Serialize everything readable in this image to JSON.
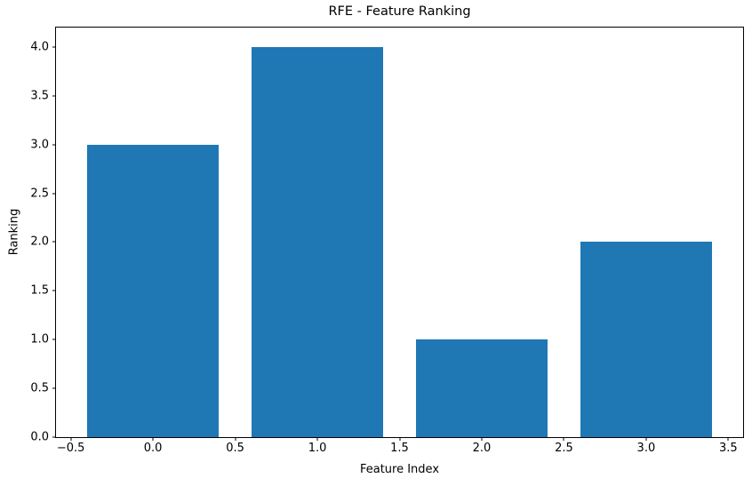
{
  "figure": {
    "background": "#ffffff"
  },
  "chart_data": {
    "type": "bar",
    "title": "RFE - Feature Ranking",
    "xlabel": "Feature Index",
    "ylabel": "Ranking",
    "x": [
      0,
      1,
      2,
      3
    ],
    "values": [
      3,
      4,
      1,
      2
    ],
    "bar_width": 0.8,
    "bar_color": "#1f77b4",
    "axis_color": "#000000",
    "xlim": [
      -0.59,
      3.59
    ],
    "ylim": [
      0,
      4.2
    ],
    "xticks": [
      {
        "v": -0.5,
        "label": "−0.5"
      },
      {
        "v": 0.0,
        "label": "0.0"
      },
      {
        "v": 0.5,
        "label": "0.5"
      },
      {
        "v": 1.0,
        "label": "1.0"
      },
      {
        "v": 1.5,
        "label": "1.5"
      },
      {
        "v": 2.0,
        "label": "2.0"
      },
      {
        "v": 2.5,
        "label": "2.5"
      },
      {
        "v": 3.0,
        "label": "3.0"
      },
      {
        "v": 3.5,
        "label": "3.5"
      }
    ],
    "yticks": [
      {
        "v": 0.0,
        "label": "0.0"
      },
      {
        "v": 0.5,
        "label": "0.5"
      },
      {
        "v": 1.0,
        "label": "1.0"
      },
      {
        "v": 1.5,
        "label": "1.5"
      },
      {
        "v": 2.0,
        "label": "2.0"
      },
      {
        "v": 2.5,
        "label": "2.5"
      },
      {
        "v": 3.0,
        "label": "3.0"
      },
      {
        "v": 3.5,
        "label": "3.5"
      },
      {
        "v": 4.0,
        "label": "4.0"
      }
    ],
    "grid": false,
    "legend": false
  }
}
